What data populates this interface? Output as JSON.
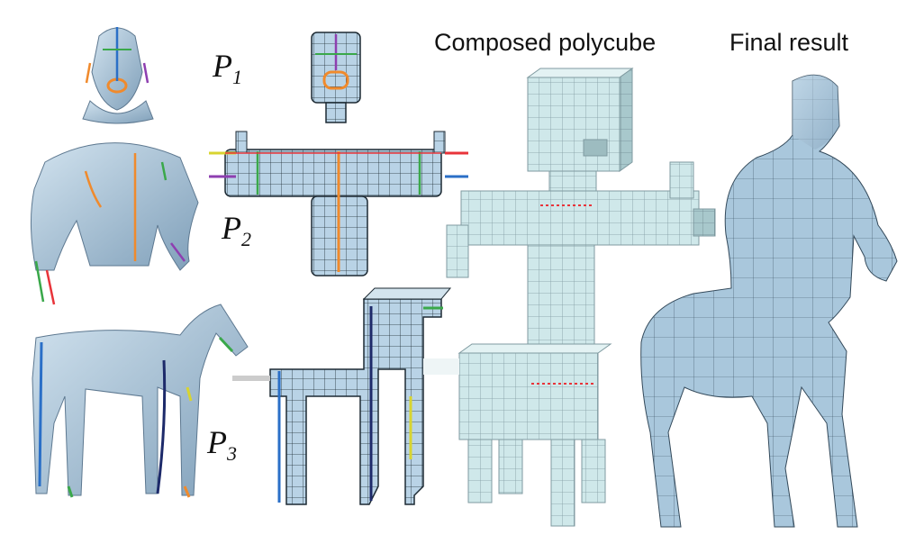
{
  "headings": {
    "composed": "Composed polycube",
    "final": "Final result"
  },
  "labels": {
    "p1_letter": "P",
    "p1_sub": "1",
    "p2_letter": "P",
    "p2_sub": "2",
    "p3_letter": "P",
    "p3_sub": "3"
  },
  "colors": {
    "mesh_fill": "#a9c7dc",
    "mesh_shade": "#7f9fb9",
    "cube_face": "#cfe8ea",
    "cube_line": "#7f9aa0",
    "grid_line": "#222222",
    "seam_red": "#e8343a",
    "feature_blue": "#2a6fc7",
    "feature_orange": "#f08a2c",
    "feature_green": "#3aa84a",
    "feature_purple": "#8e3fb0",
    "feature_yellow": "#d8d430"
  },
  "figure_parts": [
    "head-mesh-icon",
    "head-polycube-icon",
    "torso-mesh-icon",
    "torso-polycube-icon",
    "horse-mesh-icon",
    "horse-polycube-icon",
    "composed-polycube-icon",
    "centaur-result-icon"
  ]
}
